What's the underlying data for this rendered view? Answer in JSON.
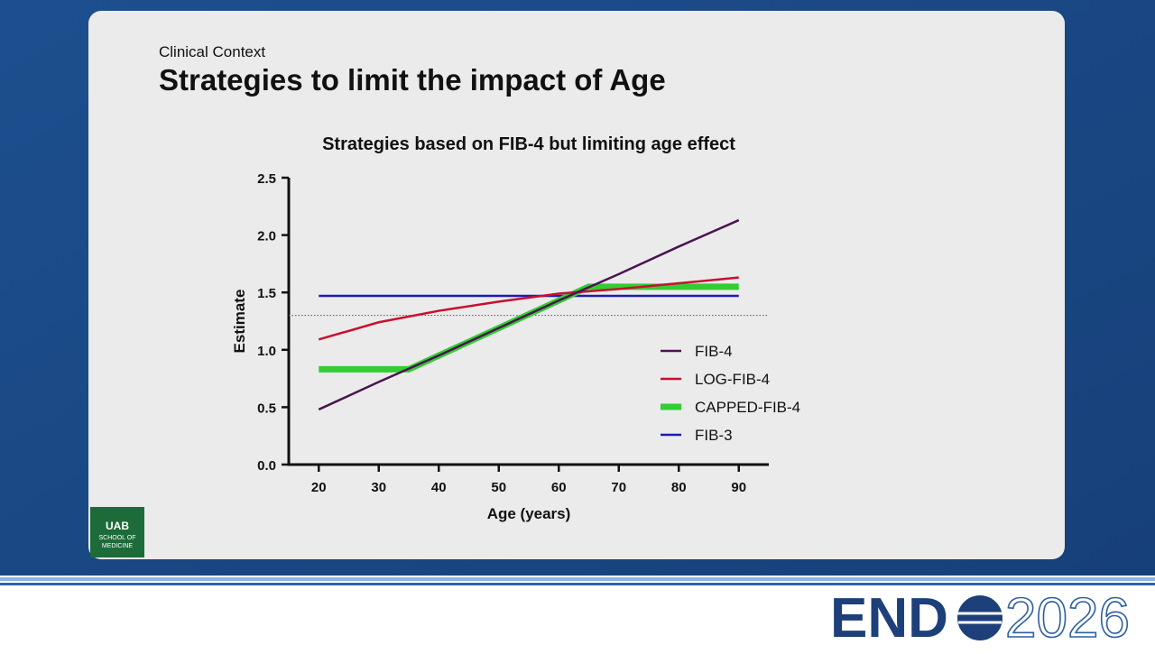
{
  "slide": {
    "kicker": "Clinical Context",
    "title": "Strategies to limit the impact of Age"
  },
  "chart_data": {
    "type": "line",
    "title": "Strategies based on FIB-4 but limiting age effect",
    "x_label": "Age (years)",
    "y_label": "Estimate",
    "xlim": [
      15,
      95
    ],
    "xticks": [
      20,
      30,
      40,
      50,
      60,
      70,
      80,
      90
    ],
    "ylim": [
      0,
      2.5
    ],
    "yticks": [
      {
        "value": 0,
        "label": "0.0"
      },
      {
        "value": 0.5,
        "label": "0.5"
      },
      {
        "value": 1,
        "label": "1.0"
      },
      {
        "value": 1.5,
        "label": "1.5"
      },
      {
        "value": 2,
        "label": "2.0"
      },
      {
        "value": 2.5,
        "label": "2.5"
      }
    ],
    "reference_line": 1.3,
    "legend": "right",
    "series": [
      {
        "name": "FIB-4",
        "color": "#4a1450",
        "linewidth": 2.5,
        "x": [
          20,
          30,
          40,
          50,
          60,
          70,
          80,
          90
        ],
        "values": [
          0.48,
          0.72,
          0.95,
          1.19,
          1.43,
          1.66,
          1.9,
          2.13
        ]
      },
      {
        "name": "LOG-FIB-4",
        "color": "#c8102e",
        "linewidth": 2.5,
        "x": [
          20,
          30,
          40,
          50,
          60,
          70,
          80,
          90
        ],
        "values": [
          1.09,
          1.24,
          1.34,
          1.42,
          1.49,
          1.53,
          1.58,
          1.63
        ]
      },
      {
        "name": "CAPPED-FIB-4",
        "color": "#33cc33",
        "linewidth": 7,
        "x": [
          20,
          35,
          65,
          90
        ],
        "values": [
          0.83,
          0.83,
          1.55,
          1.55
        ]
      },
      {
        "name": "FIB-3",
        "color": "#1c1cb4",
        "linewidth": 2.5,
        "x": [
          20,
          90
        ],
        "values": [
          1.47,
          1.47
        ]
      }
    ]
  },
  "logo": {
    "line1": "UAB",
    "line2": "SCHOOL OF",
    "line3": "MEDICINE"
  },
  "footer": {
    "brand": "END",
    "year": "2026"
  }
}
